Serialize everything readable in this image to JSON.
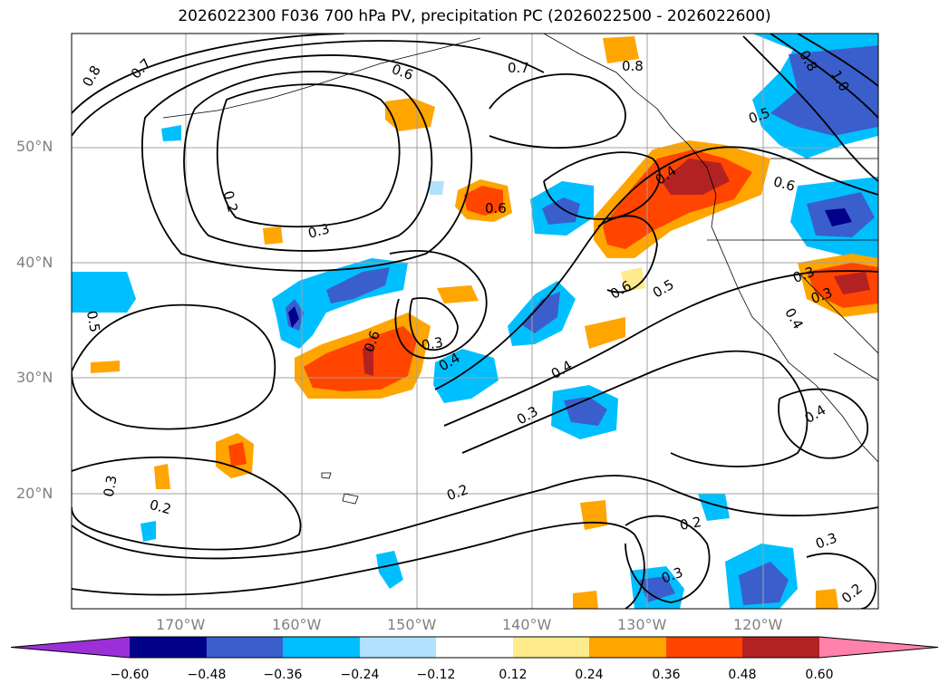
{
  "title": "2026022300 F036 700 hPa PV, precipitation PC (2026022500 - 2026022600)",
  "map": {
    "lat_labels": [
      "50°N",
      "40°N",
      "30°N",
      "20°N"
    ],
    "lon_labels": [
      "170°W",
      "160°W",
      "150°W",
      "140°W",
      "130°W",
      "120°W"
    ]
  },
  "contour_labels": [
    "0.8",
    "0.7",
    "0.6",
    "0.7",
    "0.8",
    "0.8",
    "1.0",
    "0.5",
    "0.2",
    "0.3",
    "0.6",
    "0.4",
    "0.6",
    "0.6",
    "0.5",
    "0.6",
    "0.3",
    "0.4",
    "0.5",
    "0.3",
    "0.4",
    "0.3",
    "0.4",
    "0.4",
    "0.3",
    "0.2",
    "0.3",
    "0.2",
    "0.2",
    "0.3",
    "0.3",
    "0.2"
  ],
  "colorbar": {
    "labels": [
      "−0.60",
      "−0.48",
      "−0.36",
      "−0.24",
      "−0.12",
      "0.12",
      "0.24",
      "0.36",
      "0.48",
      "0.60"
    ],
    "colors": [
      "#9b30d9",
      "#00008b",
      "#3a5fcd",
      "#00bfff",
      "#b0e2ff",
      "#ffffff",
      "#ffeb8c",
      "#ffa500",
      "#ff4500",
      "#b22222",
      "#ff82ab"
    ]
  }
}
